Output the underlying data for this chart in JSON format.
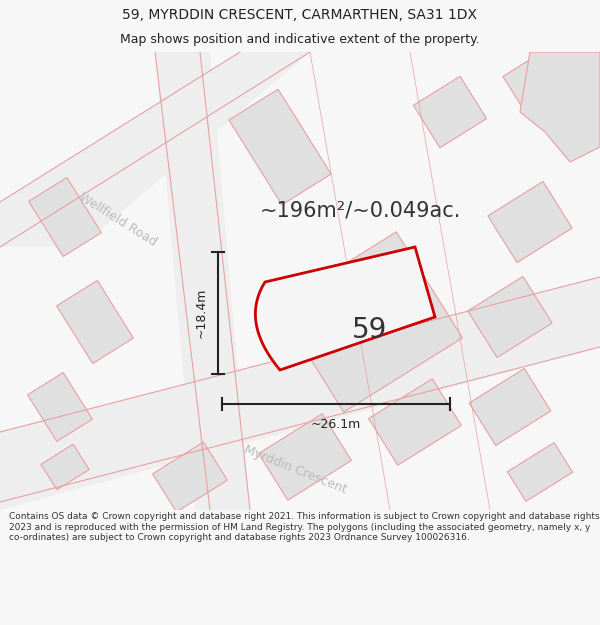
{
  "title": "59, MYRDDIN CRESCENT, CARMARTHEN, SA31 1DX",
  "subtitle": "Map shows position and indicative extent of the property.",
  "area_text": "~196m²/~0.049ac.",
  "number_label": "59",
  "width_label": "~26.1m",
  "height_label": "~18.4m",
  "footer": "Contains OS data © Crown copyright and database right 2021. This information is subject to Crown copyright and database rights 2023 and is reproduced with the permission of HM Land Registry. The polygons (including the associated geometry, namely x, y co-ordinates) are subject to Crown copyright and database rights 2023 Ordnance Survey 100026316.",
  "bg_color": "#f7f7f7",
  "map_bg": "#ffffff",
  "building_fill": "#e0e0e0",
  "building_stroke": "#e8a0a0",
  "road_fill": "#eeeeee",
  "road_stroke": "#e8a0a0",
  "plot_fill": "#f5f5f5",
  "plot_stroke": "#cc0000",
  "dim_color": "#222222",
  "road_label_color": "#bbbbbb",
  "wellfield_road_label": "Wellfield Road",
  "myrddin_crescent_label": "Myrddin Crescent",
  "title_fontsize": 10,
  "subtitle_fontsize": 9,
  "area_fontsize": 15,
  "number_fontsize": 20,
  "dim_fontsize": 9,
  "road_label_fontsize": 9,
  "footer_fontsize": 6.5
}
